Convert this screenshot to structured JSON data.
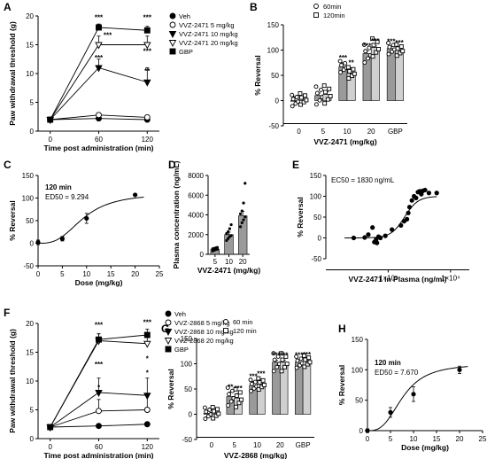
{
  "chart_data": [
    {
      "panel": "A",
      "type": "line",
      "x": [
        0,
        60,
        120
      ],
      "xticks": [
        "0",
        "60",
        "120"
      ],
      "ylim": [
        0,
        20
      ],
      "yticks": [
        "0",
        "5",
        "10",
        "15",
        "20"
      ],
      "xlabel": "Time post administration (min)",
      "ylabel": "Paw withdrawal threshold (g)",
      "series": [
        {
          "name": "Veh",
          "marker": "circle-filled",
          "values": [
            2,
            2.2,
            2
          ]
        },
        {
          "name": "VVZ-2471 5 mg/kg",
          "marker": "circle-open",
          "values": [
            2,
            2.8,
            2.4
          ]
        },
        {
          "name": "VVZ-2471 10 mg/kg",
          "marker": "tri-down-filled",
          "values": [
            2,
            11,
            8.5
          ]
        },
        {
          "name": "VVZ-2471 20 mg/kg",
          "marker": "tri-down-open",
          "values": [
            2,
            15,
            15
          ]
        },
        {
          "name": "GBP",
          "marker": "square-filled",
          "values": [
            2,
            18,
            17.5
          ]
        }
      ],
      "errors": [
        [
          0.2,
          0.3,
          0.3
        ],
        [
          0.2,
          0.4,
          0.4
        ],
        [
          0.2,
          1.5,
          2.5
        ],
        [
          0.2,
          1.5,
          1.5
        ],
        [
          0.2,
          0.6,
          0.7
        ]
      ],
      "annotations": [
        {
          "x": 60,
          "y": 19.3,
          "text": "***"
        },
        {
          "x": 71,
          "y": 16.2,
          "text": "***"
        },
        {
          "x": 60,
          "y": 12.3,
          "text": "***"
        },
        {
          "x": 120,
          "y": 19.3,
          "text": "***"
        },
        {
          "x": 120,
          "y": 13.5,
          "text": "***"
        },
        {
          "x": 120,
          "y": 10,
          "text": "**"
        }
      ]
    },
    {
      "panel": "B",
      "type": "bar",
      "categories": [
        "0",
        "5",
        "10",
        "20",
        "GBP"
      ],
      "ylim": [
        -50,
        150
      ],
      "yticks": [
        "-50",
        "0",
        "50",
        "100",
        "150"
      ],
      "xlabel": "VVZ-2471 (mg/kg)",
      "ylabel": "% Reversal",
      "series": [
        {
          "name": "60min",
          "marker": "circle-open",
          "values": [
            0,
            10,
            67,
            93,
            103
          ]
        },
        {
          "name": "120min",
          "marker": "square-open",
          "values": [
            3,
            12,
            55,
            105,
            100
          ]
        }
      ],
      "errors": [
        [
          8,
          5,
          8,
          5,
          4
        ],
        [
          6,
          5,
          10,
          3,
          4
        ]
      ],
      "annotations": [
        {
          "cat": 2,
          "s": 0,
          "text": "***"
        },
        {
          "cat": 2,
          "s": 1,
          "text": "**"
        },
        {
          "cat": 3,
          "s": 0,
          "text": "***"
        },
        {
          "cat": 3,
          "s": 1,
          "text": "***"
        },
        {
          "cat": 4,
          "s": 0,
          "text": "***"
        },
        {
          "cat": 4,
          "s": 1,
          "text": "***"
        }
      ]
    },
    {
      "panel": "C",
      "type": "line",
      "x": [
        0,
        5,
        10,
        20
      ],
      "values": [
        2,
        10,
        55,
        107
      ],
      "errors": [
        5,
        5,
        11,
        0
      ],
      "xlim": [
        0,
        25
      ],
      "xticks": [
        "0",
        "5",
        "10",
        "15",
        "20",
        "25"
      ],
      "ylim": [
        -50,
        150
      ],
      "yticks": [
        "-50",
        "0",
        "50",
        "100",
        "150"
      ],
      "xlabel": "Dose (mg/kg)",
      "ylabel": "% Reversal",
      "annotation_title": "120 min",
      "annotation_ed": "ED50 = 9.294",
      "ed50": 9.294
    },
    {
      "panel": "D",
      "type": "bar",
      "categories": [
        "5",
        "10",
        "20"
      ],
      "values": [
        500,
        2000,
        3900
      ],
      "errors": [
        90,
        250,
        450
      ],
      "ylim": [
        0,
        8000
      ],
      "yticks": [
        "0",
        "2000",
        "4000",
        "6000",
        "8000"
      ],
      "xlabel": "VVZ-2471 (mg/kg)",
      "ylabel": "Plasma concentration (ng/mL)",
      "points": [
        [
          350,
          420,
          480,
          520,
          560,
          600,
          650,
          700
        ],
        [
          1400,
          1600,
          1800,
          1900,
          2100,
          2300,
          2600,
          3000
        ],
        [
          2800,
          3200,
          3500,
          3800,
          4100,
          4400,
          5200,
          7200
        ]
      ]
    },
    {
      "panel": "E",
      "type": "scatter",
      "xscale": "log",
      "xlim": [
        100,
        20000
      ],
      "xtick_labels": [
        "1×10³",
        "1×10⁴"
      ],
      "ylim": [
        -50,
        150
      ],
      "yticks": [
        "-50",
        "0",
        "50",
        "100",
        "150"
      ],
      "xlabel": "VVZ-2471 in Plasma (ng/ml)",
      "ylabel": "% Reversal",
      "annotation": "EC50 = 1830 ng/mL",
      "ec50": 1830,
      "points": [
        [
          280,
          0
        ],
        [
          420,
          1
        ],
        [
          480,
          8
        ],
        [
          560,
          25
        ],
        [
          600,
          -10
        ],
        [
          640,
          -4
        ],
        [
          660,
          -12
        ],
        [
          700,
          3
        ],
        [
          750,
          0
        ],
        [
          900,
          5
        ],
        [
          1150,
          20
        ],
        [
          1600,
          30
        ],
        [
          1800,
          40
        ],
        [
          2000,
          45
        ],
        [
          2100,
          60
        ],
        [
          2200,
          74
        ],
        [
          2400,
          90
        ],
        [
          2600,
          100
        ],
        [
          2800,
          96
        ],
        [
          3000,
          110
        ],
        [
          3200,
          112
        ],
        [
          3400,
          105
        ],
        [
          3600,
          113
        ],
        [
          3900,
          115
        ],
        [
          4500,
          108
        ],
        [
          6000,
          108
        ]
      ]
    },
    {
      "panel": "F",
      "type": "line",
      "x": [
        0,
        60,
        120
      ],
      "xticks": [
        "0",
        "60",
        "120"
      ],
      "ylim": [
        0,
        20
      ],
      "yticks": [
        "0",
        "5",
        "10",
        "15",
        "20"
      ],
      "xlabel": "Time post administration (min)",
      "ylabel": "Paw withdrawal threshold (g)",
      "series": [
        {
          "name": "Veh",
          "marker": "circle-filled",
          "values": [
            2,
            2.2,
            2.5
          ]
        },
        {
          "name": "VVZ-2868 5 mg/kg",
          "marker": "circle-open",
          "values": [
            2,
            4.8,
            5
          ]
        },
        {
          "name": "VVZ-2868 10 mg/kg",
          "marker": "tri-down-filled",
          "values": [
            2,
            8,
            7.5
          ]
        },
        {
          "name": "VVZ-2868 20 mg/kg",
          "marker": "tri-down-open",
          "values": [
            2,
            17,
            16.5
          ]
        },
        {
          "name": "GBP",
          "marker": "square-filled",
          "values": [
            2,
            17.2,
            18
          ]
        }
      ],
      "errors": [
        [
          0.2,
          0.3,
          0.3
        ],
        [
          0.2,
          2,
          2.5
        ],
        [
          0.2,
          2.5,
          3
        ],
        [
          0.2,
          1.2,
          1.5
        ],
        [
          0.2,
          1,
          1
        ]
      ],
      "annotations": [
        {
          "x": 60,
          "y": 19.3,
          "text": "***"
        },
        {
          "x": 60,
          "y": 12.5,
          "text": "***"
        },
        {
          "x": 60,
          "y": 8.5,
          "text": "*"
        },
        {
          "x": 120,
          "y": 19.8,
          "text": "***"
        },
        {
          "x": 120,
          "y": 13.5,
          "text": "*"
        },
        {
          "x": 120,
          "y": 11,
          "text": "*"
        }
      ]
    },
    {
      "panel": "G",
      "type": "bar",
      "categories": [
        "0",
        "5",
        "10",
        "20",
        "GBP"
      ],
      "ylim": [
        -50,
        150
      ],
      "yticks": [
        "-50",
        "0",
        "50",
        "100",
        "150"
      ],
      "xlabel": "VVZ-2868 (mg/kg)",
      "ylabel": "% Reversal",
      "series": [
        {
          "name": "60 min",
          "marker": "circle-open",
          "values": [
            2,
            35,
            57,
            103,
            103
          ]
        },
        {
          "name": "120 min",
          "marker": "square-open",
          "values": [
            3,
            32,
            60,
            103,
            105
          ]
        }
      ],
      "errors": [
        [
          5,
          9,
          8,
          4,
          4
        ],
        [
          5,
          9,
          10,
          4,
          3
        ]
      ],
      "annotations": [
        {
          "cat": 1,
          "s": 0,
          "text": "**"
        },
        {
          "cat": 1,
          "s": 1,
          "text": "***"
        },
        {
          "cat": 2,
          "s": 0,
          "text": "***"
        },
        {
          "cat": 2,
          "s": 1,
          "text": "***"
        },
        {
          "cat": 3,
          "s": 0,
          "text": "***"
        },
        {
          "cat": 3,
          "s": 1,
          "text": "***"
        },
        {
          "cat": 4,
          "s": 0,
          "text": "***"
        },
        {
          "cat": 4,
          "s": 1,
          "text": "***"
        }
      ]
    },
    {
      "panel": "H",
      "type": "line",
      "x": [
        0,
        5,
        10,
        20
      ],
      "values": [
        0,
        30,
        60,
        100
      ],
      "errors": [
        3,
        8,
        12,
        6
      ],
      "xlim": [
        0,
        25
      ],
      "xticks": [
        "0",
        "5",
        "10",
        "15",
        "20",
        "25"
      ],
      "ylim": [
        0,
        150
      ],
      "yticks": [
        "0",
        "50",
        "100",
        "150"
      ],
      "xlabel": "Dose (mg/kg)",
      "ylabel": "% Reversal",
      "annotation_title": "120 min",
      "annotation_ed": "ED50 = 7.670",
      "ed50": 7.67
    }
  ]
}
